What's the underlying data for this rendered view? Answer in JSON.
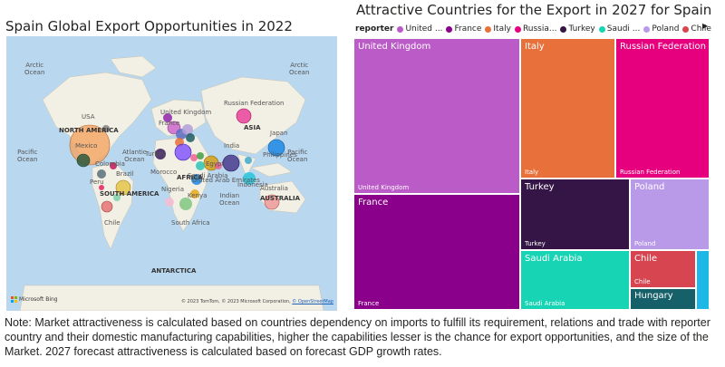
{
  "map": {
    "title": "Spain Global Export Opportunities in 2022",
    "labels": {
      "arctic_ocean_left": "Arctic\nOcean",
      "arctic_ocean_right": "Arctic\nOcean",
      "usa": "USA",
      "north_america": "NORTH AMERICA",
      "mexico": "Mexico",
      "pacific_left": "Pacific\nOcean",
      "atlantic": "Atlantic\nOcean",
      "colombia": "Colombia",
      "peru": "Peru",
      "brazil": "Brazil",
      "south_america": "SOUTH AMERICA",
      "chile": "Chile",
      "united_kingdom": "United Kingdom",
      "france": "France",
      "turkey": "Turkey",
      "morocco": "Morocco",
      "nigeria": "Nigeria",
      "africa": "AFRICA",
      "egypt": "Egypt",
      "kenya": "Kenya",
      "south_africa": "South Africa",
      "saudi_arabia": "Saudi Arabia",
      "uae": "United Arab Emirates",
      "india": "India",
      "indian_ocean": "Indian\nOcean",
      "russian_federation": "Russian Federation",
      "asia": "ASIA",
      "japan": "Japan",
      "philippines": "Philippines",
      "pacific_right": "Pacific\nOcean",
      "indonesia": "Indonesia",
      "australia": "Australia",
      "australia_caps": "AUSTRALIA",
      "antarctica": "ANTARCTICA"
    },
    "bubbles": [
      {
        "country": "Mexico",
        "color": "#f4a460"
      },
      {
        "country": "United States",
        "color": "#7a7a7a"
      },
      {
        "country": "Colombia",
        "color": "#2d5b3c"
      },
      {
        "country": "Peru",
        "color": "#5a6e7a"
      },
      {
        "country": "Venezuela",
        "color": "#c2185b"
      },
      {
        "country": "Brazil",
        "color": "#e4c44a"
      },
      {
        "country": "Argentina",
        "color": "#7fd0a8"
      },
      {
        "country": "Chile",
        "color": "#e57373"
      },
      {
        "country": "Paraguay",
        "color": "#e91e63"
      },
      {
        "country": "United Kingdom",
        "color": "#8e24aa"
      },
      {
        "country": "France",
        "color": "#cc66cc"
      },
      {
        "country": "Italy",
        "color": "#e8703a"
      },
      {
        "country": "Germany",
        "color": "#5c6bc0"
      },
      {
        "country": "Poland",
        "color": "#b39ddb"
      },
      {
        "country": "Russian Federation",
        "color": "#e91e8c"
      },
      {
        "country": "Turkey",
        "color": "#3a1a5e"
      },
      {
        "country": "Morocco",
        "color": "#7c4dff"
      },
      {
        "country": "Algeria",
        "color": "#f06292"
      },
      {
        "country": "Egypt",
        "color": "#d4a017"
      },
      {
        "country": "Saudi Arabia",
        "color": "#2ec4b6"
      },
      {
        "country": "UAE",
        "color": "#1e88e5"
      },
      {
        "country": "Nigeria",
        "color": "#f8bbd0"
      },
      {
        "country": "Kenya",
        "color": "#e6a817"
      },
      {
        "country": "South Africa",
        "color": "#80c77f"
      },
      {
        "country": "India",
        "color": "#4a3c8c"
      },
      {
        "country": "China",
        "color": "#f06292"
      },
      {
        "country": "Japan",
        "color": "#1e88e5"
      },
      {
        "country": "Philippines",
        "color": "#3fa9c9"
      },
      {
        "country": "Indonesia",
        "color": "#26c6da"
      },
      {
        "country": "Australia",
        "color": "#ef9a9a"
      },
      {
        "country": "Israel",
        "color": "#43a047"
      },
      {
        "country": "Hungary",
        "color": "#1a5c63"
      }
    ],
    "attribution": {
      "logo": "Microsoft Bing",
      "copyright": "© 2023 TomTom, © 2023 Microsoft Corporation,",
      "osm": "© OpenStreetMap"
    }
  },
  "treemap": {
    "title": "Attractive Countries for the Export in 2027 for Spain",
    "legend": {
      "title": "reporter",
      "items": [
        {
          "label": "United ...",
          "color": "#bb5bc8"
        },
        {
          "label": "France",
          "color": "#8a008a"
        },
        {
          "label": "Italy",
          "color": "#e8703a"
        },
        {
          "label": "Russia...",
          "color": "#e6007e"
        },
        {
          "label": "Turkey",
          "color": "#341546"
        },
        {
          "label": "Saudi ...",
          "color": "#17d4b4"
        },
        {
          "label": "Poland",
          "color": "#b99ae8"
        },
        {
          "label": "Chile",
          "color": "#d64550"
        }
      ],
      "more_icon": "chevron-right"
    },
    "tiles": [
      {
        "name": "United Kingdom",
        "label_top": "United Kingdom",
        "label_bottom": "United Kingdom",
        "color": "#bb5bc8"
      },
      {
        "name": "France",
        "label_top": "France",
        "label_bottom": "France",
        "color": "#8a008a"
      },
      {
        "name": "Italy",
        "label_top": "Italy",
        "label_bottom": "Italy",
        "color": "#e8703a"
      },
      {
        "name": "Russian Federation",
        "label_top": "Russian Federation",
        "label_bottom": "Russian Federation",
        "color": "#e6007e"
      },
      {
        "name": "Turkey",
        "label_top": "Turkey",
        "label_bottom": "Turkey",
        "color": "#341546"
      },
      {
        "name": "Poland",
        "label_top": "Poland",
        "label_bottom": "Poland",
        "color": "#b99ae8"
      },
      {
        "name": "Saudi Arabia",
        "label_top": "Saudi Arabia",
        "label_bottom": "Saudi Arabia",
        "color": "#17d4b4"
      },
      {
        "name": "Chile",
        "label_top": "Chile",
        "label_bottom": "Chile",
        "color": "#d64550"
      },
      {
        "name": "Hungary",
        "label_top": "Hungary",
        "label_bottom": "",
        "color": "#166069"
      },
      {
        "name": "other",
        "label_top": "",
        "label_bottom": "",
        "color": "#1eb8e6"
      }
    ]
  },
  "note": "Note: Market attractiveness is calculated based on countries dependency on imports to fulfill its requirement, relations and trade with reporter country and their domestic manufacturing capabilities, higher the capabilities lesser is the chance for export opportunities, and the size of the Market. 2027 forecast attractiveness is calculated based on forecast GDP growth rates."
}
